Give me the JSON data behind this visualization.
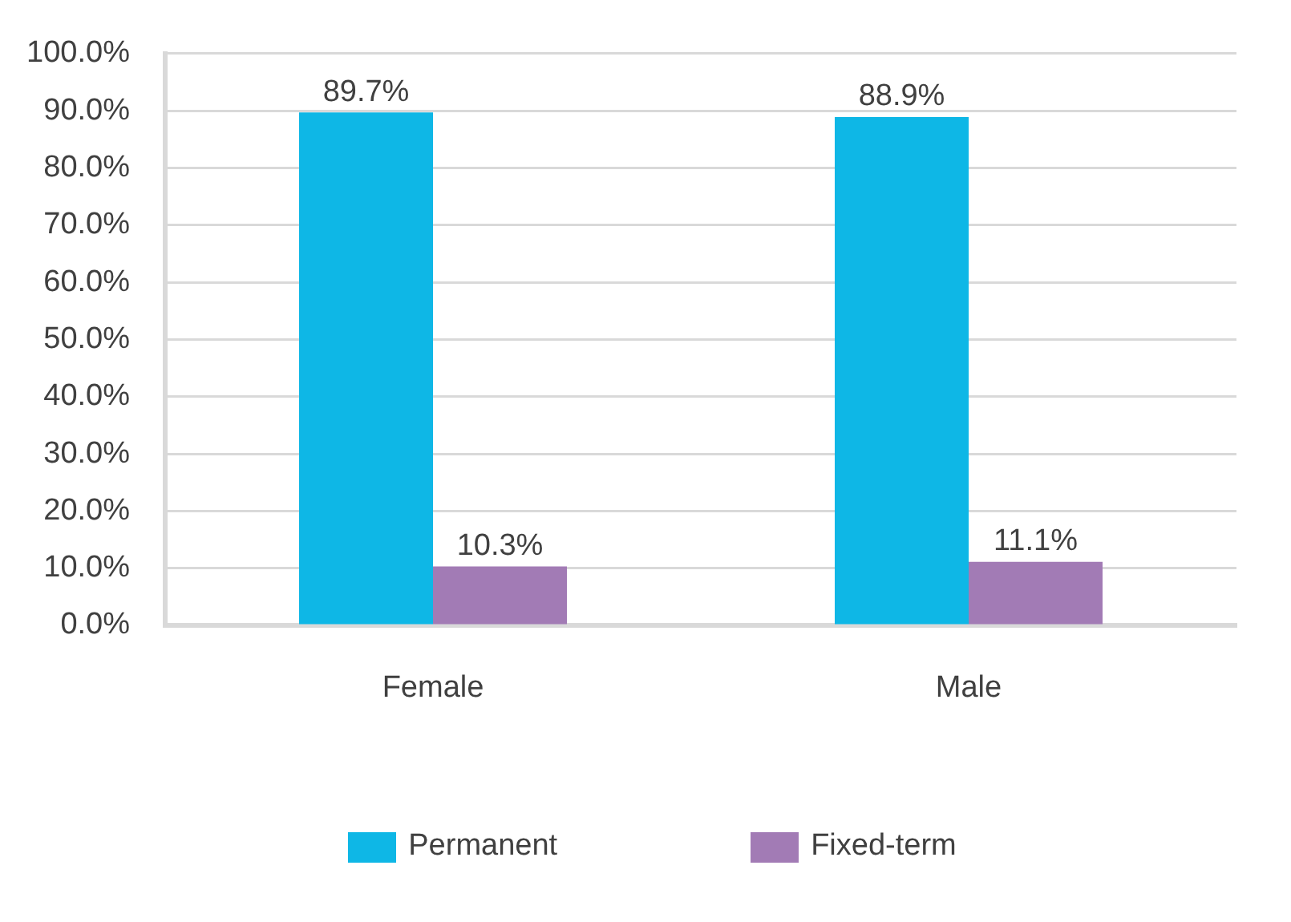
{
  "chart_data": {
    "type": "bar",
    "categories": [
      "Female",
      "Male"
    ],
    "series": [
      {
        "name": "Permanent",
        "color": "#0eb7e6",
        "values": [
          89.7,
          88.9
        ],
        "value_labels": [
          "89.7%",
          "88.9%"
        ]
      },
      {
        "name": "Fixed-term",
        "color": "#a27bb5",
        "values": [
          10.3,
          11.1
        ],
        "value_labels": [
          "10.3%",
          "11.1%"
        ]
      }
    ],
    "ylim": [
      0,
      100
    ],
    "yticks": [
      {
        "value": 0,
        "label": "0.0%"
      },
      {
        "value": 10,
        "label": "10.0%"
      },
      {
        "value": 20,
        "label": "20.0%"
      },
      {
        "value": 30,
        "label": "30.0%"
      },
      {
        "value": 40,
        "label": "40.0%"
      },
      {
        "value": 50,
        "label": "50.0%"
      },
      {
        "value": 60,
        "label": "60.0%"
      },
      {
        "value": 70,
        "label": "70.0%"
      },
      {
        "value": 80,
        "label": "80.0%"
      },
      {
        "value": 90,
        "label": "90.0%"
      },
      {
        "value": 100,
        "label": "100.0%"
      }
    ],
    "grid": "y",
    "legend": "bottom"
  }
}
